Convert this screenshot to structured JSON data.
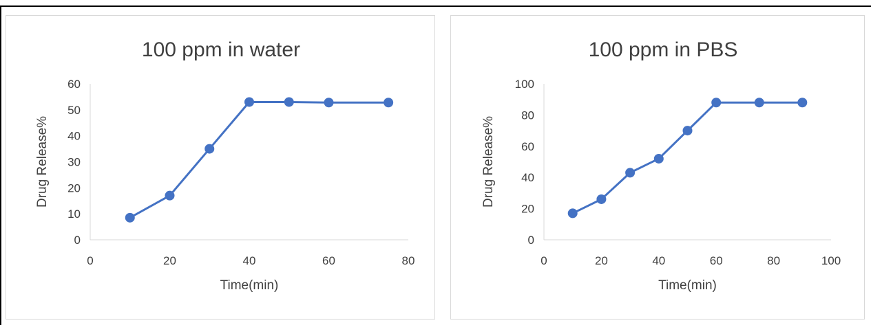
{
  "chart_data": [
    {
      "type": "line",
      "title": "100 ppm in water",
      "xlabel": "Time(min)",
      "ylabel": "Drug Release%",
      "xlim": [
        0,
        80
      ],
      "ylim": [
        0,
        60
      ],
      "xticks": [
        "0",
        "20",
        "40",
        "60",
        "80"
      ],
      "yticks": [
        "0",
        "10",
        "20",
        "30",
        "40",
        "50",
        "60"
      ],
      "grid": false,
      "legend": "none",
      "series": [
        {
          "x": [
            10,
            20,
            30,
            40,
            50,
            60,
            75
          ],
          "y": [
            8.5,
            17,
            35,
            53,
            53,
            52.8,
            52.8
          ],
          "color": "#4472c4"
        }
      ]
    },
    {
      "type": "line",
      "title": "100 ppm in PBS",
      "xlabel": "Time(min)",
      "ylabel": "Drug Release%",
      "xlim": [
        0,
        100
      ],
      "ylim": [
        0,
        100
      ],
      "xticks": [
        "0",
        "20",
        "40",
        "60",
        "80",
        "100"
      ],
      "yticks": [
        "0",
        "20",
        "40",
        "60",
        "80",
        "100"
      ],
      "grid": false,
      "legend": "none",
      "series": [
        {
          "x": [
            10,
            20,
            30,
            40,
            50,
            60,
            75,
            90
          ],
          "y": [
            17,
            26,
            43,
            52,
            70,
            88,
            88,
            88
          ],
          "color": "#4472c4"
        }
      ]
    }
  ]
}
